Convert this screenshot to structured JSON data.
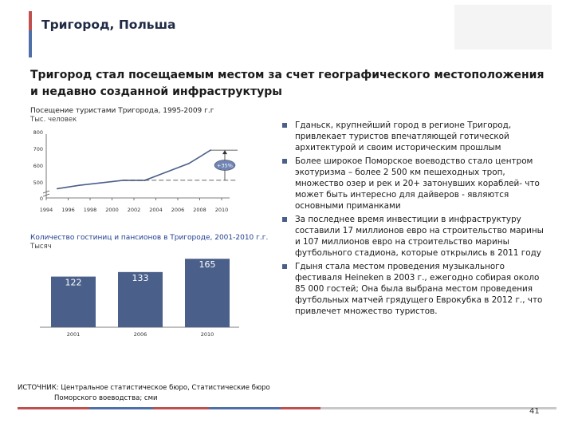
{
  "slide": {
    "title": "Тригород, Польша",
    "subtitle": "Тригород стал посещаемым местом за счет географического местоположения и недавно созданной инфраструктуры",
    "page_number": "41"
  },
  "source": {
    "line1": "ИСТОЧНИК: Центральное статистическое бюро, Статистические бюро",
    "line2": "Поморского воеводства; сми"
  },
  "bullets": [
    "Гданьск, крупнейший город в регионе Тригород, привлекает туристов впечатляющей готической архитектурой и своим историческим прошлым",
    "Более широкое Поморское воеводство стало центром экотуризма – более 2 500 км пешеходных троп, множество озер и рек и 20+ затонувших кораблей- что может быть интересно для дайверов - являются основными приманками",
    "За последнее время инвестиции в инфраструктуру составили 17 миллионов евро на строительство марины и 107 миллионов евро на строительство марины футбольного стадиона, которые открылись в 2011 году",
    "Гдыня стала местом проведения музыкального фестиваля Heineken в 2003 г., ежегодно собирая около 85 000 гостей; Она была выбрана местом проведения футбольных матчей грядущего Еврокубка в 2012 г., что привлечет множество туристов."
  ],
  "colors": {
    "accent_red": "#c0504d",
    "accent_blue": "#4f6fa8",
    "bar_fill": "#4a5f8a",
    "line_color": "#4a5f8a",
    "badge_fill": "#6f84b4"
  },
  "chart_data": [
    {
      "type": "line",
      "title": "Посещение туристами Тригорода, 1995-2009 г.г",
      "ylabel": "Тыс. человек",
      "x": [
        "1994",
        "1996",
        "1998",
        "2000",
        "2002",
        "2004",
        "2006",
        "2008",
        "2010"
      ],
      "ticks_y": [
        "800",
        "700",
        "600",
        "500",
        "0"
      ],
      "ylim": [
        0,
        800
      ],
      "axis_break": true,
      "series": [
        {
          "points": [
            [
              1995,
              460
            ],
            [
              1997,
              480
            ],
            [
              1999,
              495
            ],
            [
              2001,
              510
            ],
            [
              2003,
              510
            ],
            [
              2005,
              560
            ],
            [
              2007,
              610
            ],
            [
              2009,
              690
            ]
          ]
        }
      ],
      "annotation": "+35%",
      "grid": false
    },
    {
      "type": "bar",
      "title": "Количество гостиниц и пансионов в Тригороде, 2001-2010 г.г.",
      "ylabel": "Тысяч",
      "categories": [
        "2001",
        "2006",
        "2010"
      ],
      "values": [
        122,
        133,
        165
      ],
      "ylim": [
        0,
        180
      ],
      "grid": false
    }
  ]
}
